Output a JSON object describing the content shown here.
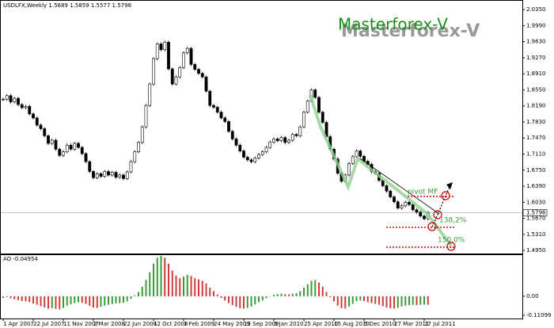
{
  "chart_data": {
    "type": "candlestick",
    "header": "USDLFX,Weekly  1.5689 1.5859 1.5577 1.5796",
    "watermark": "Masterforex-V",
    "categories": [
      "1 Apr 2007",
      null,
      null,
      null,
      null,
      null,
      null,
      null,
      "22 Jul 2007",
      null,
      null,
      null,
      null,
      null,
      null,
      null,
      "11 Nov 2007",
      null,
      null,
      null,
      null,
      null,
      null,
      null,
      "2 Mar 2008",
      null,
      null,
      null,
      null,
      null,
      null,
      null,
      "22 Jun 2008",
      null,
      null,
      null,
      null,
      null,
      null,
      null,
      "12 Oct 2008",
      null,
      null,
      null,
      null,
      null,
      null,
      null,
      "1 Feb 2009",
      null,
      null,
      null,
      null,
      null,
      null,
      null,
      "24 May 2009",
      null,
      null,
      null,
      null,
      null,
      null,
      null,
      "13 Sep 2009",
      null,
      null,
      null,
      null,
      null,
      null,
      null,
      "3 Jan 2010",
      null,
      null,
      null,
      null,
      null,
      null,
      null,
      "25 Apr 2010",
      null,
      null,
      null,
      null,
      null,
      null,
      null,
      "15 Aug 2010",
      null,
      null,
      null,
      null,
      null,
      null,
      null,
      "5 Dec 2010",
      null,
      null,
      null,
      null,
      null,
      null,
      null,
      "27 Mar 2011",
      null,
      null,
      null,
      null,
      null,
      null,
      null,
      "17 Jul 2011",
      null
    ],
    "close": [
      1.834,
      1.842,
      1.828,
      1.836,
      1.822,
      1.815,
      1.818,
      1.801,
      1.792,
      1.776,
      1.768,
      1.752,
      1.735,
      1.742,
      1.722,
      1.708,
      1.716,
      1.731,
      1.722,
      1.735,
      1.726,
      1.712,
      1.694,
      1.672,
      1.658,
      1.667,
      1.661,
      1.672,
      1.664,
      1.67,
      1.659,
      1.664,
      1.656,
      1.671,
      1.694,
      1.716,
      1.737,
      1.772,
      1.82,
      1.868,
      1.925,
      1.958,
      1.945,
      1.962,
      1.902,
      1.868,
      1.884,
      1.905,
      1.938,
      1.948,
      1.912,
      1.901,
      1.892,
      1.884,
      1.852,
      1.82,
      1.816,
      1.805,
      1.792,
      1.784,
      1.762,
      1.745,
      1.731,
      1.718,
      1.704,
      1.698,
      1.694,
      1.702,
      1.71,
      1.716,
      1.726,
      1.738,
      1.745,
      1.741,
      1.748,
      1.737,
      1.742,
      1.755,
      1.752,
      1.772,
      1.805,
      1.83,
      1.855,
      1.838,
      1.805,
      1.782,
      1.75,
      1.722,
      1.7,
      1.668,
      1.65,
      1.664,
      1.69,
      1.705,
      1.718,
      1.706,
      1.695,
      1.688,
      1.672,
      1.668,
      1.652,
      1.64,
      1.628,
      1.615,
      1.604,
      1.59,
      1.595,
      1.603,
      1.598,
      1.586,
      1.581,
      1.572,
      1.566,
      1.5796
    ],
    "ylim": [
      1.488,
      2.053
    ],
    "yticks": [
      {
        "value": 2.035,
        "label": "2.0350"
      },
      {
        "value": 1.999,
        "label": "1.9990"
      },
      {
        "value": 1.963,
        "label": "1.9630"
      },
      {
        "value": 1.927,
        "label": "1.9270"
      },
      {
        "value": 1.891,
        "label": "1.8910"
      },
      {
        "value": 1.855,
        "label": "1.8550"
      },
      {
        "value": 1.819,
        "label": "1.8190"
      },
      {
        "value": 1.783,
        "label": "1.7830"
      },
      {
        "value": 1.747,
        "label": "1.7470"
      },
      {
        "value": 1.711,
        "label": "1.7110"
      },
      {
        "value": 1.675,
        "label": "1.6750"
      },
      {
        "value": 1.639,
        "label": "1.6390"
      },
      {
        "value": 1.603,
        "label": "1.6030"
      },
      {
        "value": 1.567,
        "label": "1.5670"
      },
      {
        "value": 1.531,
        "label": "1.5310"
      },
      {
        "value": 1.495,
        "label": "1.4950"
      }
    ],
    "last_price": {
      "value": 1.5796,
      "label": "1.5796"
    },
    "annotations": [
      "pivot MF",
      "138,2%",
      "150,0%"
    ],
    "indicator": {
      "title": "AO -0.04954",
      "values": [
        -0.01,
        -0.005,
        -0.012,
        -0.018,
        -0.022,
        -0.028,
        -0.03,
        -0.035,
        -0.042,
        -0.05,
        -0.058,
        -0.065,
        -0.072,
        -0.07,
        -0.074,
        -0.076,
        -0.068,
        -0.055,
        -0.048,
        -0.04,
        -0.035,
        -0.038,
        -0.045,
        -0.056,
        -0.066,
        -0.068,
        -0.062,
        -0.055,
        -0.05,
        -0.046,
        -0.042,
        -0.04,
        -0.038,
        -0.03,
        -0.015,
        0.005,
        0.025,
        0.055,
        0.095,
        0.14,
        0.19,
        0.225,
        0.235,
        0.225,
        0.19,
        0.15,
        0.12,
        0.105,
        0.115,
        0.125,
        0.118,
        0.105,
        0.098,
        0.09,
        0.075,
        0.05,
        0.03,
        0.01,
        -0.01,
        -0.025,
        -0.04,
        -0.052,
        -0.062,
        -0.07,
        -0.072,
        -0.068,
        -0.06,
        -0.048,
        -0.035,
        -0.025,
        -0.012,
        0.0,
        0.008,
        0.012,
        0.015,
        0.012,
        0.01,
        0.014,
        0.018,
        0.03,
        0.05,
        0.07,
        0.09,
        0.095,
        0.08,
        0.055,
        0.025,
        -0.005,
        -0.03,
        -0.055,
        -0.07,
        -0.072,
        -0.06,
        -0.045,
        -0.03,
        -0.025,
        -0.028,
        -0.035,
        -0.04,
        -0.045,
        -0.05,
        -0.058,
        -0.065,
        -0.07,
        -0.072,
        -0.068,
        -0.06,
        -0.055,
        -0.052,
        -0.05,
        -0.052,
        -0.05,
        -0.049,
        -0.04954
      ],
      "ylim": [
        -0.13,
        0.24
      ],
      "yticks": [
        {
          "value": 0,
          "label": "0.00"
        },
        -0.11099
      ],
      "up_color": "#3c9a3c",
      "down_color": "#d23c3c"
    },
    "up_color": "#ffffff",
    "down_color": "#000000"
  }
}
